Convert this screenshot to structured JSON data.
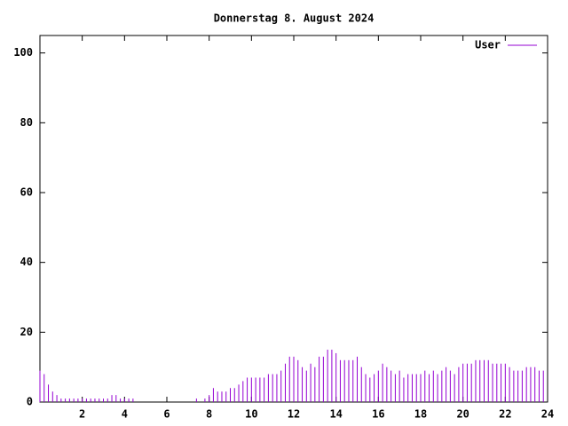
{
  "chart_data": {
    "type": "impulse",
    "title": "Donnerstag 8. August 2024",
    "x": [
      0,
      0.2,
      0.4,
      0.6,
      0.8,
      1,
      1.2,
      1.4,
      1.6,
      1.8,
      2,
      2.2,
      2.4,
      2.6,
      2.8,
      3,
      3.2,
      3.4,
      3.6,
      3.8,
      4,
      4.2,
      4.4,
      4.6,
      4.8,
      5,
      5.2,
      5.4,
      5.6,
      5.8,
      6,
      6.2,
      6.4,
      6.6,
      6.8,
      7,
      7.2,
      7.4,
      7.6,
      7.8,
      8,
      8.2,
      8.4,
      8.6,
      8.8,
      9,
      9.2,
      9.4,
      9.6,
      9.8,
      10,
      10.2,
      10.4,
      10.6,
      10.8,
      11,
      11.2,
      11.4,
      11.6,
      11.8,
      12,
      12.2,
      12.4,
      12.6,
      12.8,
      13,
      13.2,
      13.4,
      13.6,
      13.8,
      14,
      14.2,
      14.4,
      14.6,
      14.8,
      15,
      15.2,
      15.4,
      15.6,
      15.8,
      16,
      16.2,
      16.4,
      16.6,
      16.8,
      17,
      17.2,
      17.4,
      17.6,
      17.8,
      18,
      18.2,
      18.4,
      18.6,
      18.8,
      19,
      19.2,
      19.4,
      19.6,
      19.8,
      20,
      20.2,
      20.4,
      20.6,
      20.8,
      21,
      21.2,
      21.4,
      21.6,
      21.8,
      22,
      22.2,
      22.4,
      22.6,
      22.8,
      23,
      23.2,
      23.4,
      23.6,
      23.8
    ],
    "series": [
      {
        "name": "User",
        "color": "#9400d3",
        "values": [
          9,
          8,
          5,
          3,
          2,
          1,
          1,
          1,
          1,
          1,
          1,
          1,
          1,
          1,
          1,
          1,
          1,
          2,
          2,
          1,
          1,
          1,
          1,
          0,
          0,
          0,
          0,
          0,
          0,
          0,
          0,
          0,
          0,
          0,
          0,
          0,
          0,
          1,
          0,
          1,
          2,
          4,
          3,
          3,
          3,
          4,
          4,
          5,
          6,
          7,
          7,
          7,
          7,
          7,
          8,
          8,
          8,
          9,
          11,
          13,
          13,
          12,
          10,
          9,
          11,
          10,
          13,
          13,
          15,
          15,
          14,
          12,
          12,
          12,
          12,
          13,
          10,
          8,
          7,
          8,
          9,
          11,
          10,
          9,
          8,
          9,
          7,
          8,
          8,
          8,
          8,
          9,
          8,
          9,
          8,
          9,
          10,
          9,
          8,
          10,
          11,
          11,
          11,
          12,
          12,
          12,
          12,
          11,
          11,
          11,
          11,
          10,
          9,
          9,
          9,
          10,
          10,
          10,
          9,
          9
        ]
      }
    ],
    "xlim": [
      0,
      24
    ],
    "xticks": [
      2,
      4,
      6,
      8,
      10,
      12,
      14,
      16,
      18,
      20,
      22,
      24
    ],
    "ylim": [
      0,
      105
    ],
    "yticks": [
      0,
      20,
      40,
      60,
      80,
      100
    ],
    "legend": "top-right"
  }
}
